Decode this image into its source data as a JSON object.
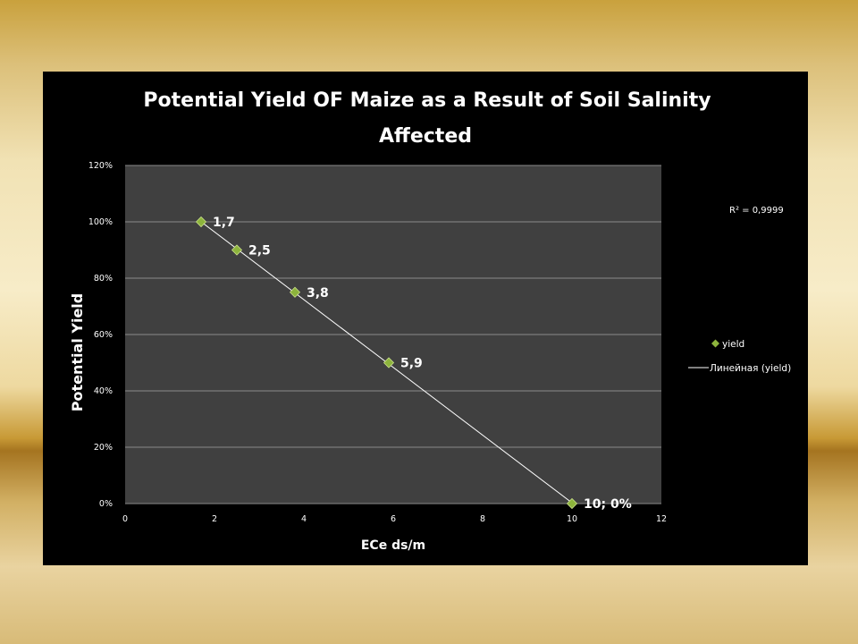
{
  "chart_data": {
    "type": "scatter",
    "title_line1": "Potential Yield OF  Maize as a Result of Soil Salinity",
    "title_line2": "Affected",
    "xlabel": "ECe ds/m",
    "ylabel": "Potential Yield",
    "xlim": [
      0,
      12
    ],
    "ylim": [
      0,
      1.2
    ],
    "x_ticks": [
      "0",
      "2",
      "4",
      "6",
      "8",
      "10",
      "12"
    ],
    "y_ticks": [
      "0%",
      "20%",
      "40%",
      "60%",
      "80%",
      "100%",
      "120%"
    ],
    "grid": true,
    "legend_position": "right",
    "series": [
      {
        "name": "yield",
        "x": [
          1.7,
          2.5,
          3.8,
          5.9,
          10
        ],
        "y": [
          1.0,
          0.9,
          0.75,
          0.5,
          0.0
        ],
        "labels": [
          "1,7",
          "2,5",
          "3,8",
          "5,9",
          "10; 0%"
        ],
        "color": "#8db43c"
      }
    ],
    "trendline": {
      "name": "Линейная (yield)",
      "type": "linear",
      "r2_label": "R² = 0,9999",
      "color": "#ffffff"
    },
    "colors": {
      "plot_background": "#404040",
      "gridline": "#8a8a8a",
      "panel_background": "#000000"
    }
  }
}
